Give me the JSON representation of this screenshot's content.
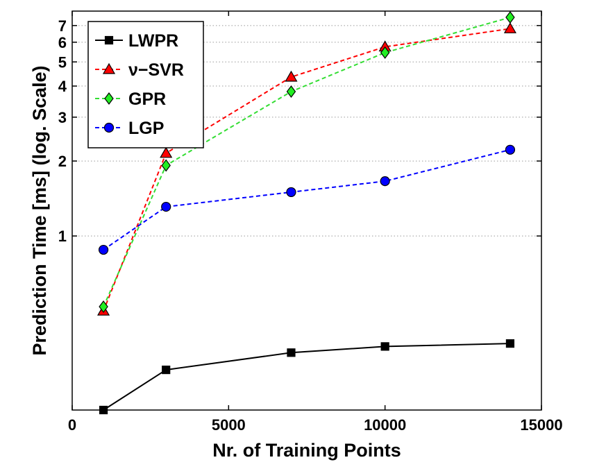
{
  "chart_data": {
    "type": "line",
    "title": "",
    "xlabel": "Nr. of Training Points",
    "ylabel": "Prediction Time [ms] (log. Scale)",
    "xlim": [
      0,
      15000
    ],
    "ylim": [
      0.2,
      8
    ],
    "yscale": "log",
    "x_ticks": [
      0,
      5000,
      10000,
      15000
    ],
    "y_ticks": [
      1,
      2,
      3,
      4,
      5,
      6,
      7
    ],
    "grid": "y-dotted",
    "legend_position": "top-left",
    "x": [
      1000,
      3000,
      7000,
      10000,
      14000
    ],
    "series": [
      {
        "name": "LWPR",
        "values": [
          0.2,
          0.29,
          0.34,
          0.36,
          0.37
        ],
        "color": "#000000",
        "marker": "square",
        "line": "solid"
      },
      {
        "name": "ν−SVR",
        "values": [
          0.5,
          2.15,
          4.35,
          5.75,
          6.8
        ],
        "color": "#ff0000",
        "marker_fill": "#ff0000",
        "marker": "triangle",
        "line": "dashed"
      },
      {
        "name": "GPR",
        "values": [
          0.52,
          1.92,
          3.8,
          5.45,
          7.55
        ],
        "color": "#33dd33",
        "marker_fill": "#22ee22",
        "marker": "diamond",
        "line": "dashed"
      },
      {
        "name": "LGP",
        "values": [
          0.88,
          1.31,
          1.5,
          1.66,
          2.22
        ],
        "color": "#0000ff",
        "marker_fill": "#0000ff",
        "marker": "circle",
        "line": "dashed"
      }
    ]
  }
}
